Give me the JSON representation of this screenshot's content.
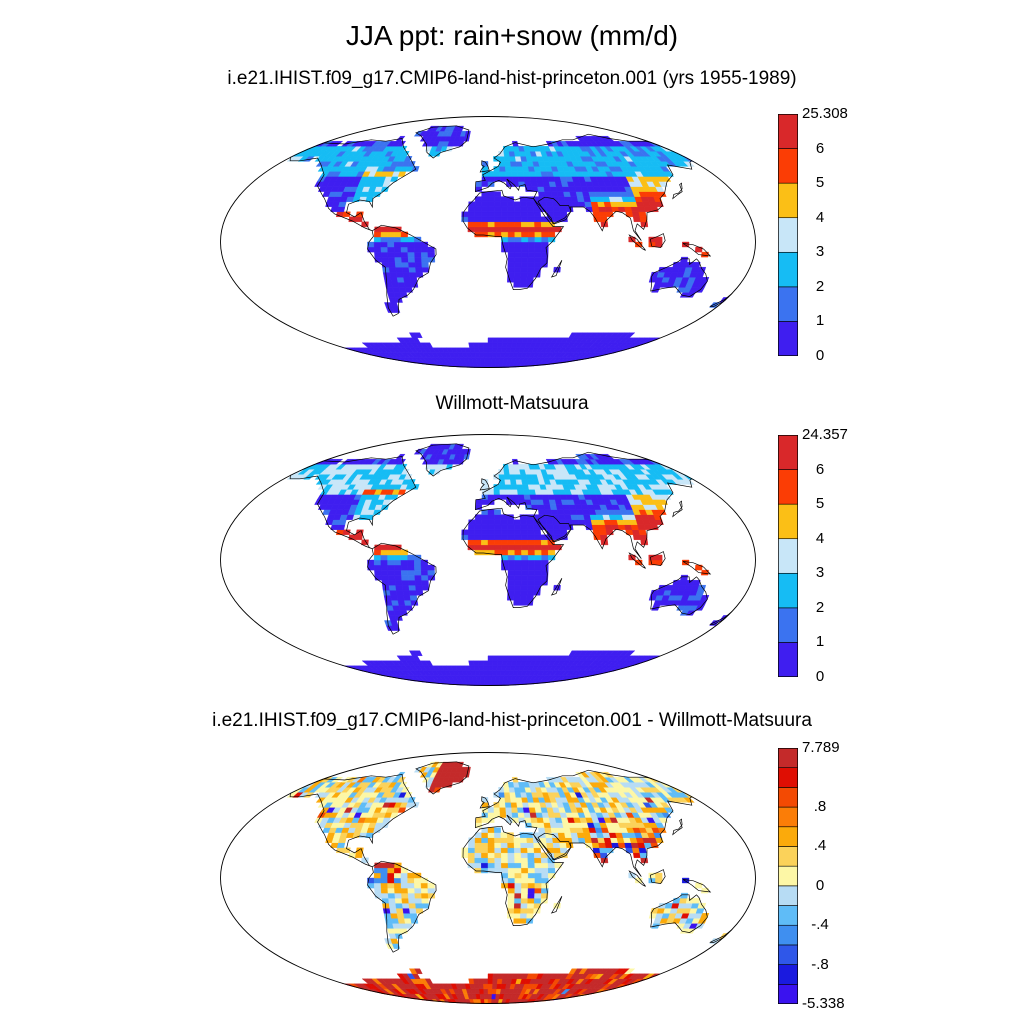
{
  "figure": {
    "title": "JJA ppt: rain+snow (mm/d)"
  },
  "panels": [
    {
      "title": "i.e21.IHIST.f09_g17.CMIP6-land-hist-princeton.001 (yrs 1955-1989)",
      "colorbar": {
        "colors": [
          "#3f1ef0",
          "#3b73f0",
          "#16bcf4",
          "#c8e6f8",
          "#fbbf16",
          "#fb3d05",
          "#d9282a"
        ],
        "labels": [
          "0",
          "1",
          "2",
          "3",
          "4",
          "5",
          "6",
          "25.308"
        ]
      }
    },
    {
      "title": "Willmott-Matsuura",
      "colorbar": {
        "colors": [
          "#3f1ef0",
          "#3b73f0",
          "#16bcf4",
          "#c8e6f8",
          "#fbbf16",
          "#fb3d05",
          "#d9282a"
        ],
        "labels": [
          "0",
          "1",
          "2",
          "3",
          "4",
          "5",
          "6",
          "24.357"
        ]
      }
    },
    {
      "title": "i.e21.IHIST.f09_g17.CMIP6-land-hist-princeton.001 - Willmott-Matsuura",
      "colorbar": {
        "colors": [
          "#3a12ef",
          "#1a1adf",
          "#2f57e9",
          "#3f8ff0",
          "#5fbcf7",
          "#b7dcf4",
          "#fdf7a6",
          "#fbd25a",
          "#fbaa0b",
          "#fb7d07",
          "#f34a03",
          "#df0e03",
          "#c42a2a"
        ],
        "labels": [
          "-5.338",
          "",
          "-.8",
          "",
          "-.4",
          "",
          "0",
          "",
          ".4",
          "",
          ".8",
          "",
          "",
          "7.789"
        ]
      }
    }
  ]
}
